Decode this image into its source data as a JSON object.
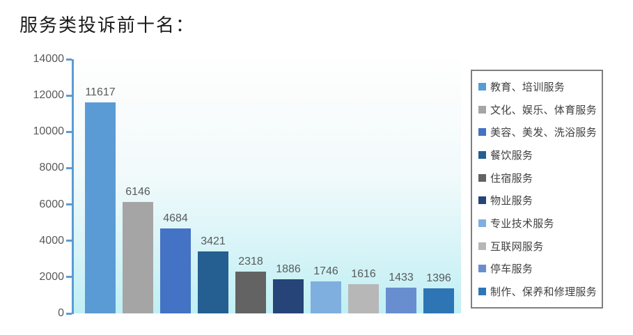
{
  "page": {
    "title": "服务类投诉前十名："
  },
  "chart_data": {
    "type": "bar",
    "title": "服务类投诉前十名：",
    "categories": [
      "教育、培训服务",
      "文化、娱乐、体育服务",
      "美容、美发、洗浴服务",
      "餐饮服务",
      "住宿服务",
      "物业服务",
      "专业技术服务",
      "互联网服务",
      "停车服务",
      "制作、保养和修理服务"
    ],
    "values": [
      11617,
      6146,
      4684,
      3421,
      2318,
      1886,
      1746,
      1616,
      1433,
      1396
    ],
    "bar_colors": [
      "#5B9BD5",
      "#A5A5A5",
      "#4472C4",
      "#255E91",
      "#636363",
      "#264478",
      "#7EAFDF",
      "#B7B7B7",
      "#698ED0",
      "#2E75B6"
    ],
    "xlabel": "",
    "ylabel": "",
    "ylim": [
      0,
      14000
    ],
    "yticks": [
      0,
      2000,
      4000,
      6000,
      8000,
      10000,
      12000,
      14000
    ],
    "grid": false,
    "legend_position": "right",
    "data_labels": true,
    "colors": {
      "axis": "#5B9BD5",
      "tick_label": "#595959",
      "value_label": "#595959",
      "legend_text": "#404040",
      "legend_border": "#7F7F7F",
      "title": "#1A1A1A",
      "plot_bg_top": "#FEFEFD",
      "plot_bg_bottom": "#C0EFF4"
    }
  }
}
